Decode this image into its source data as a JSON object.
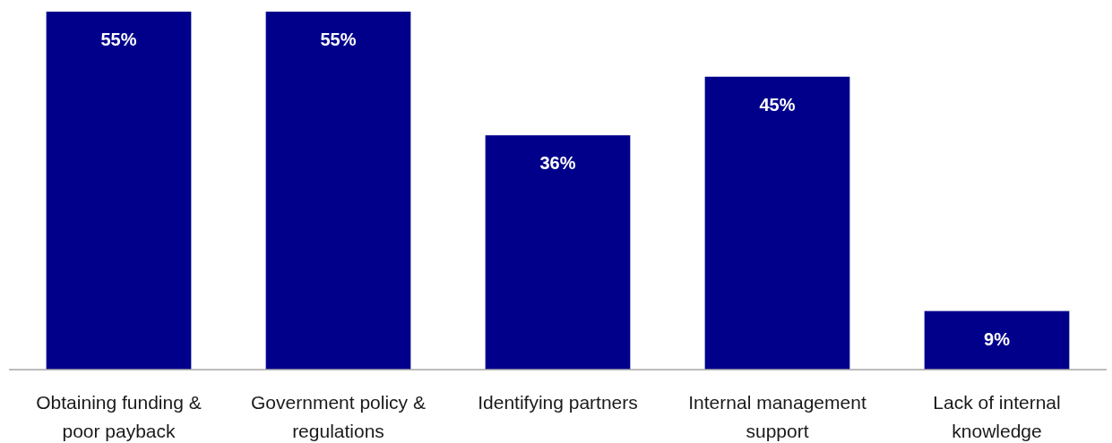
{
  "chart_data": {
    "type": "bar",
    "categories": [
      "Obtaining funding & poor payback",
      "Government policy & regulations",
      "Identifying partners",
      "Internal management support",
      "Lack of internal knowledge"
    ],
    "values": [
      55,
      55,
      36,
      45,
      9
    ],
    "value_labels": [
      "55%",
      "55%",
      "36%",
      "45%",
      "9%"
    ],
    "color": "#00008b"
  }
}
